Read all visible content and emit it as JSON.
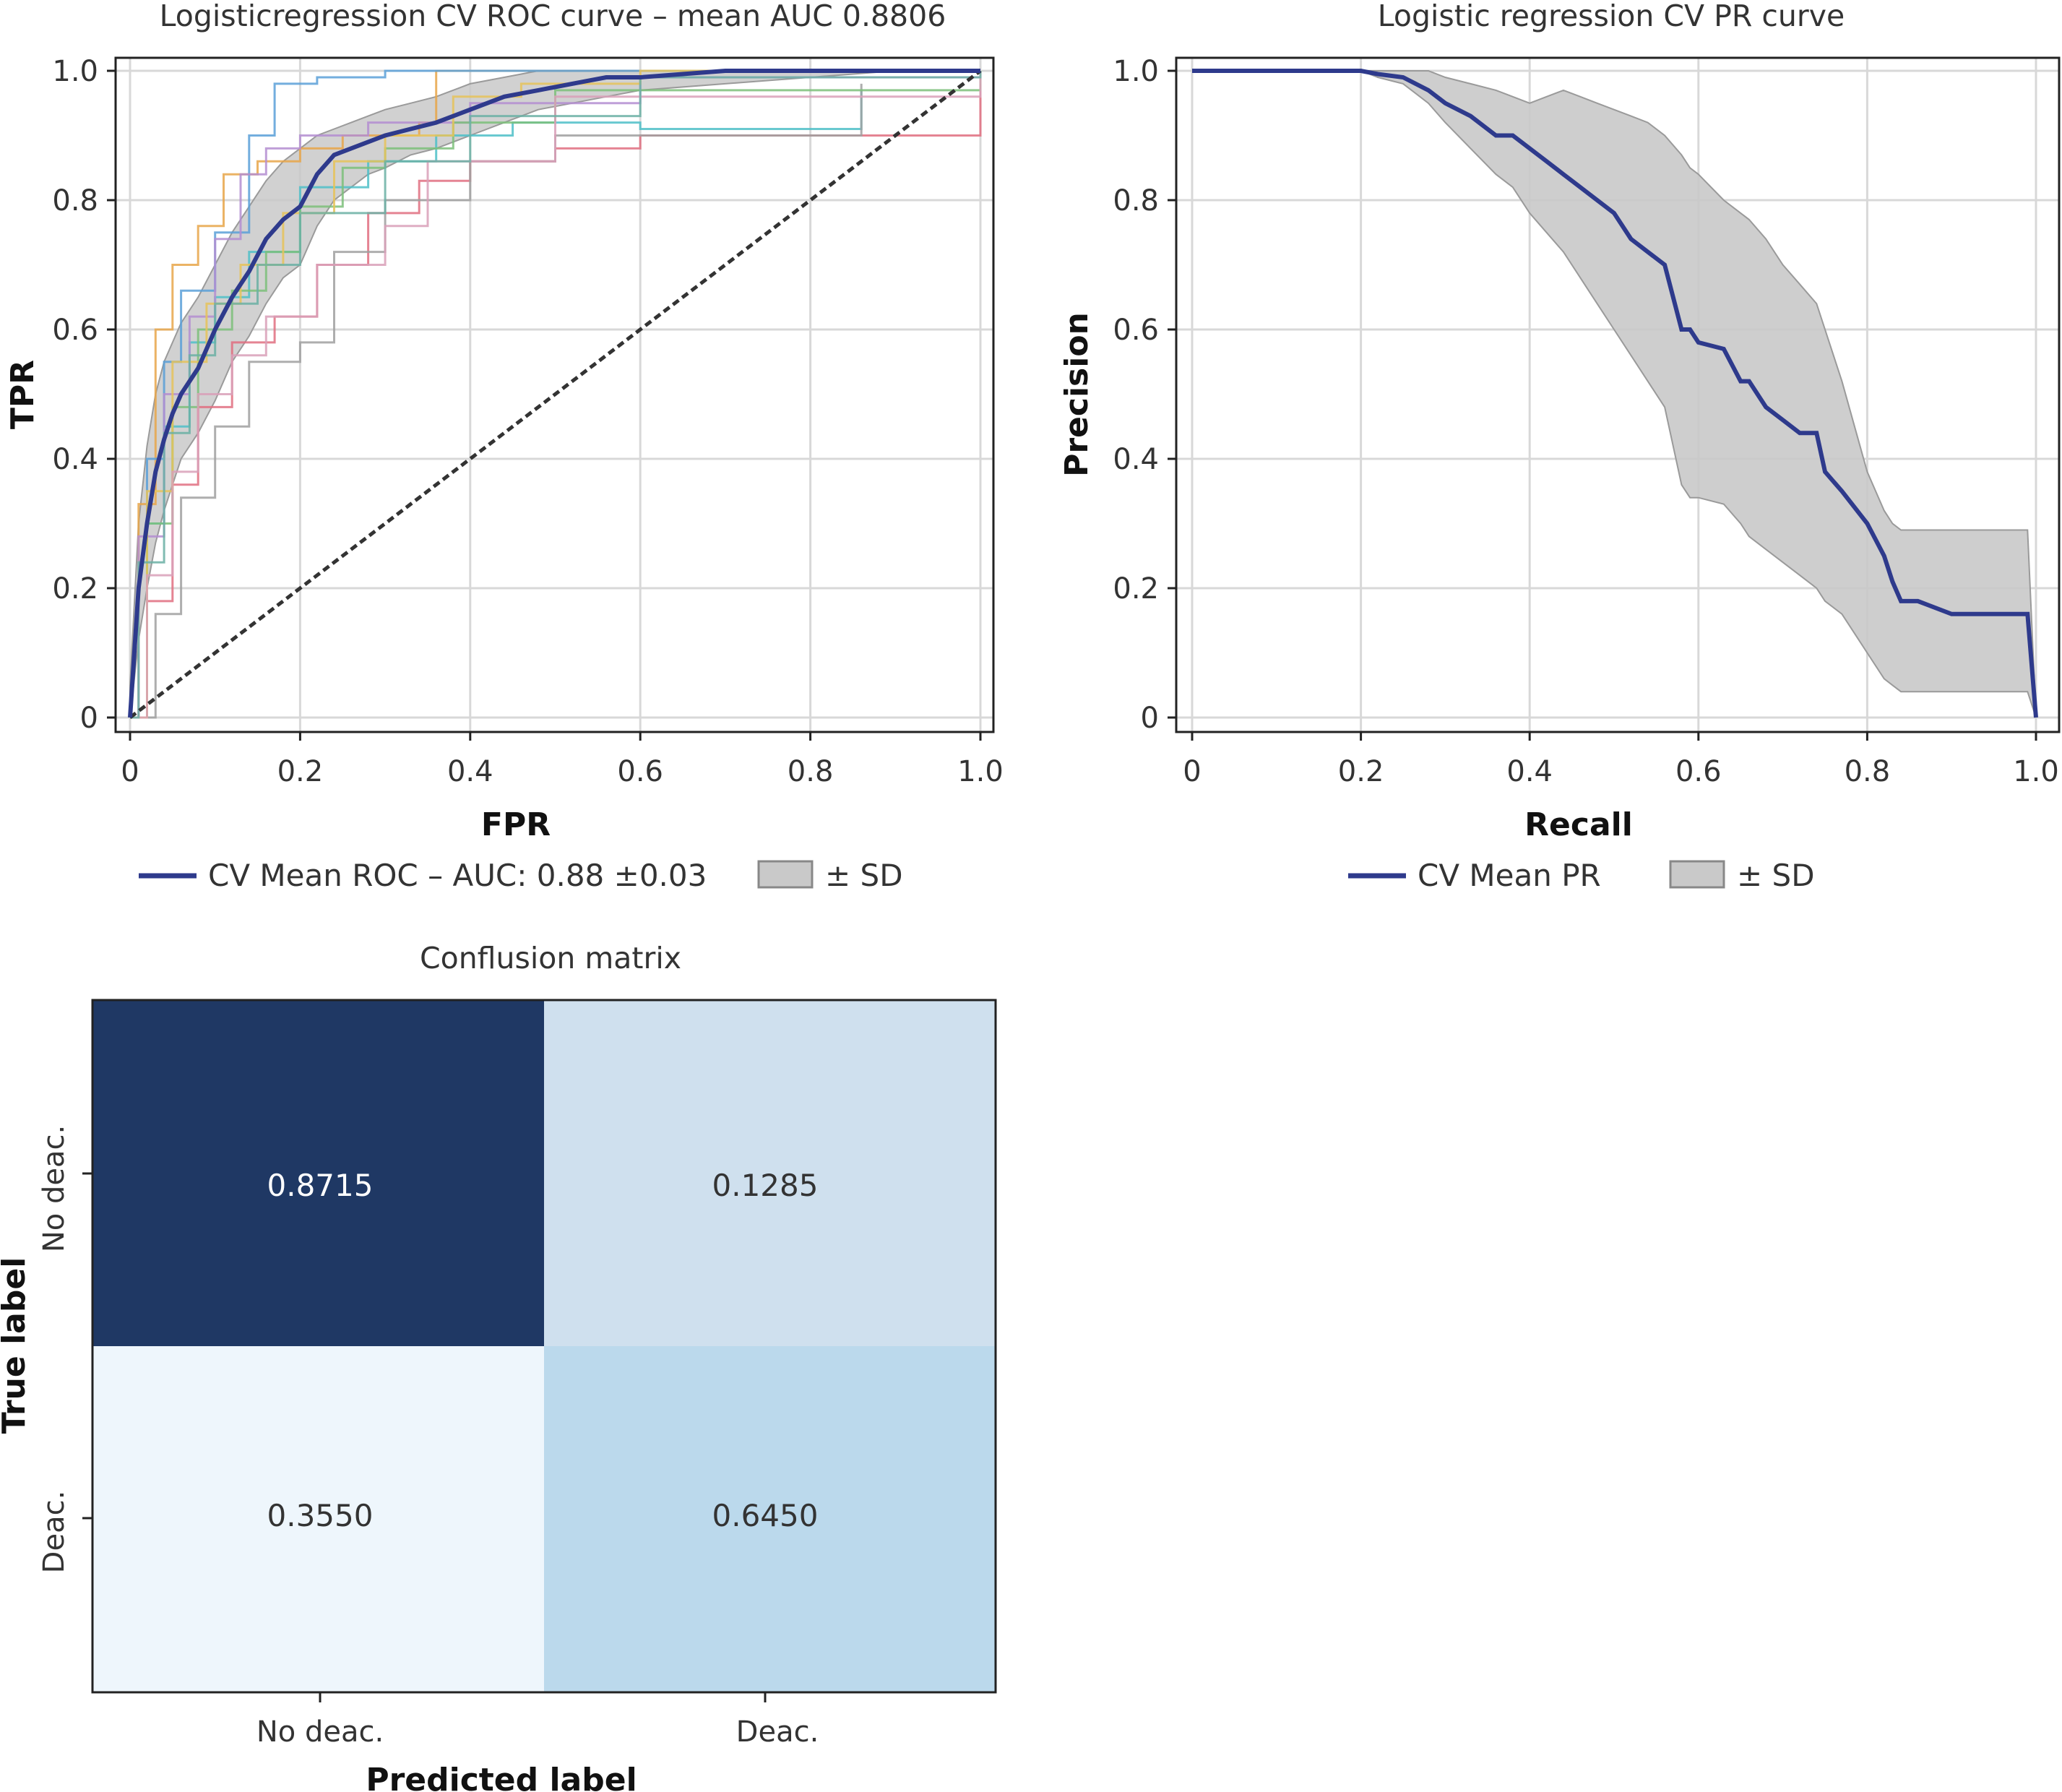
{
  "chart_data": [
    {
      "type": "line",
      "title": "Logisticregression CV ROC curve – mean AUC 0.8806",
      "xlabel": "FPR",
      "ylabel": "TPR",
      "xlim": [
        0,
        1.0
      ],
      "ylim": [
        0,
        1.0
      ],
      "xticks": [
        "0",
        "0.2",
        "0.4",
        "0.6",
        "0.8",
        "1.0"
      ],
      "yticks": [
        "0",
        "0.2",
        "0.4",
        "0.6",
        "0.8",
        "1.0"
      ],
      "grid": true,
      "legend_position": "below",
      "legend": {
        "line_label": "CV Mean ROC – AUC: 0.88 ±0.03",
        "band_label": "± SD"
      },
      "colors": {
        "mean": "#2e3a8c",
        "band": "#c9c9c9",
        "chance": "#333333"
      },
      "series": [
        {
          "name": "CV Mean ROC – AUC: 0.88 ±0.03",
          "x": [
            0,
            0.01,
            0.02,
            0.03,
            0.04,
            0.05,
            0.06,
            0.08,
            0.1,
            0.12,
            0.14,
            0.16,
            0.18,
            0.2,
            0.22,
            0.24,
            0.26,
            0.28,
            0.3,
            0.33,
            0.36,
            0.4,
            0.44,
            0.48,
            0.52,
            0.56,
            0.6,
            0.7,
            0.8,
            0.9,
            1.0
          ],
          "y": [
            0,
            0.2,
            0.3,
            0.38,
            0.43,
            0.47,
            0.5,
            0.54,
            0.6,
            0.65,
            0.69,
            0.74,
            0.77,
            0.79,
            0.84,
            0.87,
            0.88,
            0.89,
            0.9,
            0.91,
            0.92,
            0.94,
            0.96,
            0.97,
            0.98,
            0.99,
            0.99,
            1.0,
            1.0,
            1.0,
            1.0
          ]
        },
        {
          "name": "± SD",
          "x": [
            0,
            0.01,
            0.02,
            0.03,
            0.04,
            0.05,
            0.06,
            0.08,
            0.1,
            0.12,
            0.14,
            0.16,
            0.18,
            0.2,
            0.22,
            0.24,
            0.26,
            0.28,
            0.3,
            0.33,
            0.36,
            0.4,
            0.44,
            0.48,
            0.52,
            0.56,
            0.6,
            0.7,
            0.8,
            0.9,
            1.0
          ],
          "y_upper": [
            0.05,
            0.3,
            0.42,
            0.5,
            0.55,
            0.58,
            0.61,
            0.65,
            0.7,
            0.75,
            0.79,
            0.83,
            0.86,
            0.88,
            0.9,
            0.91,
            0.92,
            0.93,
            0.94,
            0.95,
            0.96,
            0.98,
            0.99,
            1.0,
            1.0,
            1.0,
            1.0,
            1.0,
            1.0,
            1.0,
            1.0
          ],
          "y_lower": [
            0,
            0.12,
            0.2,
            0.27,
            0.32,
            0.36,
            0.4,
            0.44,
            0.49,
            0.55,
            0.59,
            0.64,
            0.68,
            0.7,
            0.76,
            0.8,
            0.82,
            0.84,
            0.85,
            0.87,
            0.88,
            0.9,
            0.92,
            0.94,
            0.95,
            0.96,
            0.97,
            0.98,
            0.99,
            1.0,
            1.0
          ]
        },
        {
          "name": "chance",
          "x": [
            0,
            1
          ],
          "y": [
            0,
            1
          ]
        }
      ],
      "folds": [
        {
          "color": "#e8a64a",
          "x": [
            0,
            0.01,
            0.03,
            0.05,
            0.08,
            0.11,
            0.15,
            0.2,
            0.25,
            0.34,
            0.36,
            0.5,
            1.0
          ],
          "y": [
            0,
            0.33,
            0.6,
            0.7,
            0.76,
            0.84,
            0.86,
            0.88,
            0.9,
            0.92,
            1.0,
            1.0,
            1.0
          ]
        },
        {
          "color": "#5aa0d8",
          "x": [
            0,
            0.02,
            0.04,
            0.06,
            0.1,
            0.14,
            0.17,
            0.22,
            0.3,
            0.4,
            0.6,
            1.0
          ],
          "y": [
            0,
            0.4,
            0.55,
            0.66,
            0.75,
            0.9,
            0.98,
            0.99,
            1.0,
            1.0,
            1.0,
            1.0
          ]
        },
        {
          "color": "#4fc0c8",
          "x": [
            0,
            0.02,
            0.04,
            0.07,
            0.1,
            0.14,
            0.2,
            0.28,
            0.36,
            0.45,
            0.6,
            0.86,
            0.86
          ],
          "y": [
            0,
            0.3,
            0.45,
            0.58,
            0.65,
            0.72,
            0.82,
            0.86,
            0.9,
            0.92,
            0.91,
            0.91,
            0.97
          ]
        },
        {
          "color": "#e06f80",
          "x": [
            0,
            0.02,
            0.05,
            0.08,
            0.12,
            0.17,
            0.22,
            0.28,
            0.34,
            0.4,
            0.5,
            0.6,
            1.0
          ],
          "y": [
            0,
            0.18,
            0.36,
            0.48,
            0.58,
            0.62,
            0.7,
            0.78,
            0.83,
            0.86,
            0.88,
            0.9,
            0.98
          ]
        },
        {
          "color": "#a0a0a0",
          "x": [
            0,
            0.03,
            0.06,
            0.1,
            0.14,
            0.2,
            0.24,
            0.3,
            0.4,
            0.5,
            0.86,
            0.86
          ],
          "y": [
            0,
            0.16,
            0.34,
            0.45,
            0.55,
            0.58,
            0.72,
            0.8,
            0.86,
            0.9,
            0.96,
            0.98
          ]
        },
        {
          "color": "#b48ed1",
          "x": [
            0,
            0.01,
            0.04,
            0.07,
            0.1,
            0.13,
            0.16,
            0.2,
            0.28,
            0.4,
            0.6,
            1.0
          ],
          "y": [
            0,
            0.28,
            0.5,
            0.62,
            0.74,
            0.84,
            0.88,
            0.9,
            0.92,
            0.95,
            0.99,
            1.0
          ]
        },
        {
          "color": "#7dbf7a",
          "x": [
            0,
            0.02,
            0.05,
            0.08,
            0.12,
            0.16,
            0.2,
            0.25,
            0.3,
            0.38,
            0.5,
            1.0
          ],
          "y": [
            0,
            0.3,
            0.48,
            0.6,
            0.66,
            0.72,
            0.79,
            0.85,
            0.88,
            0.92,
            0.97,
            1.0
          ]
        },
        {
          "color": "#e6c35a",
          "x": [
            0,
            0.02,
            0.05,
            0.09,
            0.13,
            0.18,
            0.24,
            0.3,
            0.38,
            0.46,
            0.6,
            1.0
          ],
          "y": [
            0,
            0.35,
            0.55,
            0.64,
            0.7,
            0.78,
            0.86,
            0.9,
            0.96,
            0.98,
            1.0,
            1.0
          ]
        },
        {
          "color": "#d9a0b8",
          "x": [
            0,
            0.02,
            0.05,
            0.08,
            0.12,
            0.16,
            0.22,
            0.3,
            0.35,
            0.5,
            1.0
          ],
          "y": [
            0,
            0.22,
            0.38,
            0.5,
            0.56,
            0.62,
            0.7,
            0.76,
            0.86,
            0.96,
            1.0
          ]
        },
        {
          "color": "#6bb0a4",
          "x": [
            0,
            0.01,
            0.04,
            0.07,
            0.1,
            0.15,
            0.2,
            0.3,
            0.4,
            0.6,
            1.0
          ],
          "y": [
            0,
            0.24,
            0.44,
            0.56,
            0.64,
            0.7,
            0.78,
            0.86,
            0.93,
            0.99,
            1.0
          ]
        }
      ]
    },
    {
      "type": "line",
      "title": "Logistic regression CV PR curve",
      "xlabel": "Recall",
      "ylabel": "Precision",
      "xlim": [
        0,
        1.0
      ],
      "ylim": [
        0,
        1.0
      ],
      "xticks": [
        "0",
        "0.2",
        "0.4",
        "0.6",
        "0.8",
        "1.0"
      ],
      "yticks": [
        "0",
        "0.2",
        "0.4",
        "0.6",
        "0.8",
        "1.0"
      ],
      "grid": true,
      "legend_position": "below",
      "legend": {
        "line_label": "CV Mean PR",
        "band_label": "± SD"
      },
      "colors": {
        "mean": "#2e3a8c",
        "band": "#c9c9c9"
      },
      "series": [
        {
          "name": "CV Mean PR",
          "x": [
            0,
            0.1,
            0.2,
            0.22,
            0.25,
            0.28,
            0.3,
            0.33,
            0.36,
            0.38,
            0.4,
            0.42,
            0.44,
            0.46,
            0.48,
            0.5,
            0.52,
            0.54,
            0.56,
            0.58,
            0.59,
            0.6,
            0.63,
            0.65,
            0.66,
            0.68,
            0.7,
            0.72,
            0.74,
            0.75,
            0.77,
            0.8,
            0.82,
            0.83,
            0.84,
            0.86,
            0.9,
            0.95,
            0.99,
            1.0
          ],
          "y": [
            1.0,
            1.0,
            1.0,
            0.995,
            0.99,
            0.97,
            0.95,
            0.93,
            0.9,
            0.9,
            0.88,
            0.86,
            0.84,
            0.82,
            0.8,
            0.78,
            0.74,
            0.72,
            0.7,
            0.6,
            0.6,
            0.58,
            0.57,
            0.52,
            0.52,
            0.48,
            0.46,
            0.44,
            0.44,
            0.38,
            0.35,
            0.3,
            0.25,
            0.21,
            0.18,
            0.18,
            0.16,
            0.16,
            0.16,
            0.0
          ]
        },
        {
          "name": "± SD",
          "x": [
            0,
            0.1,
            0.2,
            0.22,
            0.25,
            0.28,
            0.3,
            0.33,
            0.36,
            0.38,
            0.4,
            0.42,
            0.44,
            0.46,
            0.48,
            0.5,
            0.52,
            0.54,
            0.56,
            0.58,
            0.59,
            0.6,
            0.63,
            0.65,
            0.66,
            0.68,
            0.7,
            0.72,
            0.74,
            0.75,
            0.77,
            0.8,
            0.82,
            0.83,
            0.84,
            0.86,
            0.9,
            0.95,
            0.99,
            1.0
          ],
          "y_upper": [
            1.0,
            1.0,
            1.0,
            1.0,
            1.0,
            1.0,
            0.99,
            0.98,
            0.97,
            0.96,
            0.95,
            0.96,
            0.97,
            0.96,
            0.95,
            0.94,
            0.93,
            0.92,
            0.9,
            0.87,
            0.85,
            0.84,
            0.8,
            0.78,
            0.77,
            0.74,
            0.7,
            0.67,
            0.64,
            0.6,
            0.52,
            0.38,
            0.32,
            0.3,
            0.29,
            0.29,
            0.29,
            0.29,
            0.29,
            0.0
          ],
          "y_lower": [
            1.0,
            1.0,
            1.0,
            0.99,
            0.98,
            0.95,
            0.92,
            0.88,
            0.84,
            0.82,
            0.78,
            0.75,
            0.72,
            0.68,
            0.64,
            0.6,
            0.56,
            0.52,
            0.48,
            0.36,
            0.34,
            0.34,
            0.33,
            0.3,
            0.28,
            0.26,
            0.24,
            0.22,
            0.2,
            0.18,
            0.16,
            0.1,
            0.06,
            0.05,
            0.04,
            0.04,
            0.04,
            0.04,
            0.04,
            0.0
          ]
        }
      ]
    },
    {
      "type": "heatmap",
      "title": "Conflusion matrix",
      "xlabel": "Predicted label",
      "ylabel": "True label",
      "x_categories": [
        "No deac.",
        "Deac."
      ],
      "y_categories": [
        "No deac.",
        "Deac."
      ],
      "values": [
        [
          "0.8715",
          "0.1285"
        ],
        [
          "0.3550",
          "0.6450"
        ]
      ],
      "colors": {
        "cells": [
          [
            "#1f3864",
            "#cfe0ee"
          ],
          [
            "#eef6fc",
            "#bbd9ec"
          ]
        ],
        "text": [
          [
            "#ffffff",
            "#333333"
          ],
          [
            "#333333",
            "#333333"
          ]
        ]
      }
    }
  ]
}
